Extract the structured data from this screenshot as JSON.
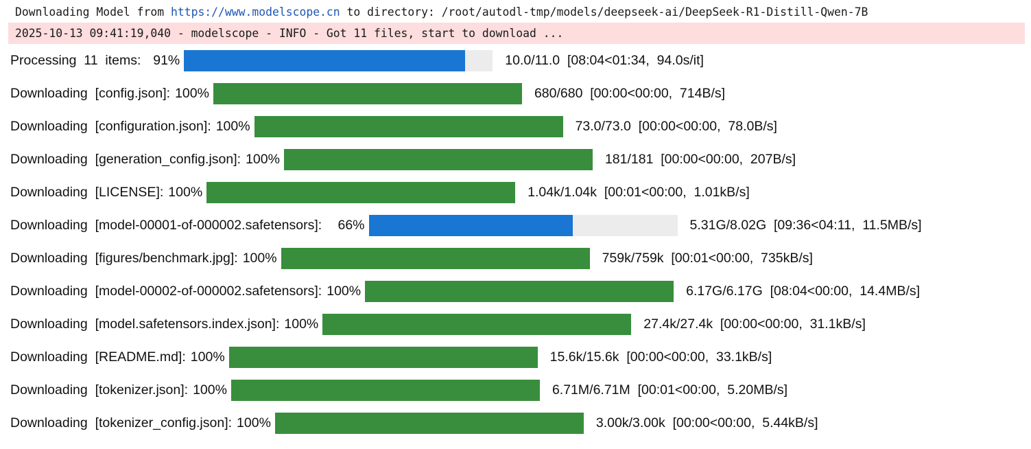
{
  "log": {
    "stdout_prefix": "Downloading Model from ",
    "stdout_url": "https://www.modelscope.cn",
    "stdout_suffix": " to directory: /root/autodl-tmp/models/deepseek-ai/DeepSeek-R1-Distill-Qwen-7B",
    "stderr_line": "2025-10-13 09:41:19,040 - modelscope - INFO - Got 11 files, start to download ..."
  },
  "colors": {
    "active_bar": "#1976d2",
    "complete_bar": "#388e3c",
    "bar_track": "#ececec",
    "stderr_background": "#fddddd"
  },
  "progress_rows": [
    {
      "desc": "Processing  11  items:",
      "pct": "  91%",
      "fraction": 0.91,
      "state": "active",
      "stats": "10.0/11.0  [08:04<01:34,  94.0s/it]"
    },
    {
      "desc": "Downloading  [config.json]:",
      "pct": "100%",
      "fraction": 1.0,
      "state": "done",
      "stats": "680/680  [00:00<00:00,  714B/s]"
    },
    {
      "desc": "Downloading  [configuration.json]:",
      "pct": "100%",
      "fraction": 1.0,
      "state": "done",
      "stats": "73.0/73.0  [00:00<00:00,  78.0B/s]"
    },
    {
      "desc": "Downloading  [generation_config.json]:",
      "pct": "100%",
      "fraction": 1.0,
      "state": "done",
      "stats": "181/181  [00:00<00:00,  207B/s]"
    },
    {
      "desc": "Downloading  [LICENSE]:",
      "pct": "100%",
      "fraction": 1.0,
      "state": "done",
      "stats": "1.04k/1.04k  [00:01<00:00,  1.01kB/s]"
    },
    {
      "desc": "Downloading  [model-00001-of-000002.safetensors]:",
      "pct": "   66%",
      "fraction": 0.66,
      "state": "active",
      "stats": "5.31G/8.02G  [09:36<04:11,  11.5MB/s]"
    },
    {
      "desc": "Downloading  [figures/benchmark.jpg]:",
      "pct": "100%",
      "fraction": 1.0,
      "state": "done",
      "stats": "759k/759k  [00:01<00:00,  735kB/s]"
    },
    {
      "desc": "Downloading  [model-00002-of-000002.safetensors]:",
      "pct": "100%",
      "fraction": 1.0,
      "state": "done",
      "stats": "6.17G/6.17G  [08:04<00:00,  14.4MB/s]"
    },
    {
      "desc": "Downloading  [model.safetensors.index.json]:",
      "pct": "100%",
      "fraction": 1.0,
      "state": "done",
      "stats": "27.4k/27.4k  [00:00<00:00,  31.1kB/s]"
    },
    {
      "desc": "Downloading  [README.md]:",
      "pct": "100%",
      "fraction": 1.0,
      "state": "done",
      "stats": "15.6k/15.6k  [00:00<00:00,  33.1kB/s]"
    },
    {
      "desc": "Downloading  [tokenizer.json]:",
      "pct": "100%",
      "fraction": 1.0,
      "state": "done",
      "stats": "6.71M/6.71M  [00:01<00:00,  5.20MB/s]"
    },
    {
      "desc": "Downloading  [tokenizer_config.json]:",
      "pct": "100%",
      "fraction": 1.0,
      "state": "done",
      "stats": "3.00k/3.00k  [00:00<00:00,  5.44kB/s]"
    }
  ]
}
